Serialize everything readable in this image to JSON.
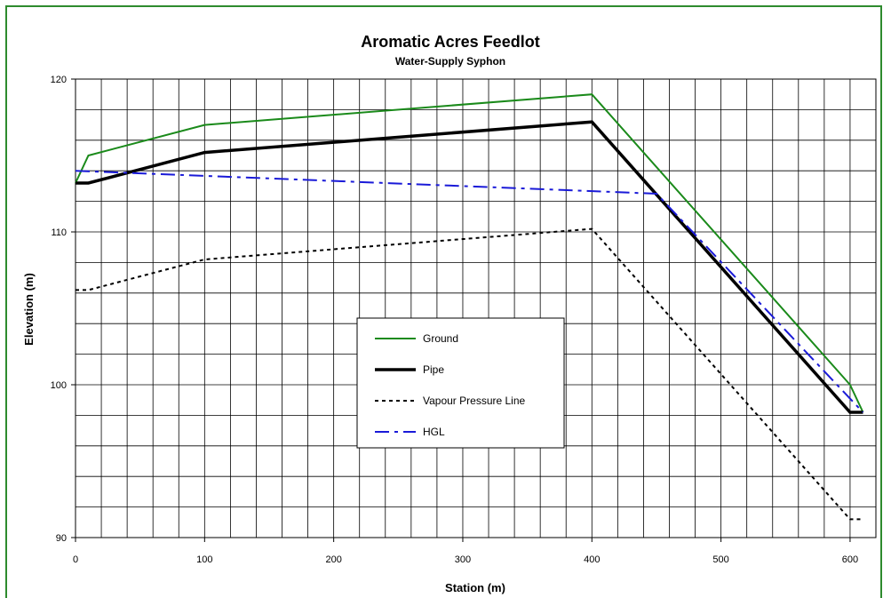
{
  "chart_data": {
    "type": "line",
    "title": "Aromatic Acres Feedlot",
    "subtitle": "Water-Supply Syphon",
    "xlabel": "Station (m)",
    "ylabel": "Elevation (m)",
    "xlim": [
      0,
      620
    ],
    "ylim": [
      90,
      120
    ],
    "x_ticks": [
      0,
      100,
      200,
      300,
      400,
      500,
      600
    ],
    "y_ticks": [
      90,
      100,
      110,
      120
    ],
    "x_minor_step": 20,
    "y_minor_step": 2,
    "grid": true,
    "legend_position": "center-right",
    "series": [
      {
        "name": "Ground",
        "color": "#1a8a1a",
        "style": "solid",
        "width": 2,
        "x": [
          0,
          10,
          100,
          400,
          600,
          610
        ],
        "y": [
          113.2,
          115,
          117,
          119,
          100,
          98.2
        ]
      },
      {
        "name": "Pipe",
        "color": "#000000",
        "style": "solid",
        "width": 3.5,
        "x": [
          0,
          10,
          100,
          400,
          600,
          610
        ],
        "y": [
          113.2,
          113.2,
          115.2,
          117.2,
          98.2,
          98.2
        ]
      },
      {
        "name": "Vapour Pressure Line",
        "color": "#000000",
        "style": "dotted",
        "width": 2,
        "x": [
          0,
          10,
          100,
          400,
          600,
          610
        ],
        "y": [
          106.2,
          106.2,
          108.2,
          110.2,
          91.2,
          91.2
        ]
      },
      {
        "name": "HGL",
        "color": "#1a1ad8",
        "style": "dashdot",
        "width": 2,
        "x": [
          0,
          450,
          610
        ],
        "y": [
          114,
          112.5,
          98.2
        ]
      }
    ]
  }
}
